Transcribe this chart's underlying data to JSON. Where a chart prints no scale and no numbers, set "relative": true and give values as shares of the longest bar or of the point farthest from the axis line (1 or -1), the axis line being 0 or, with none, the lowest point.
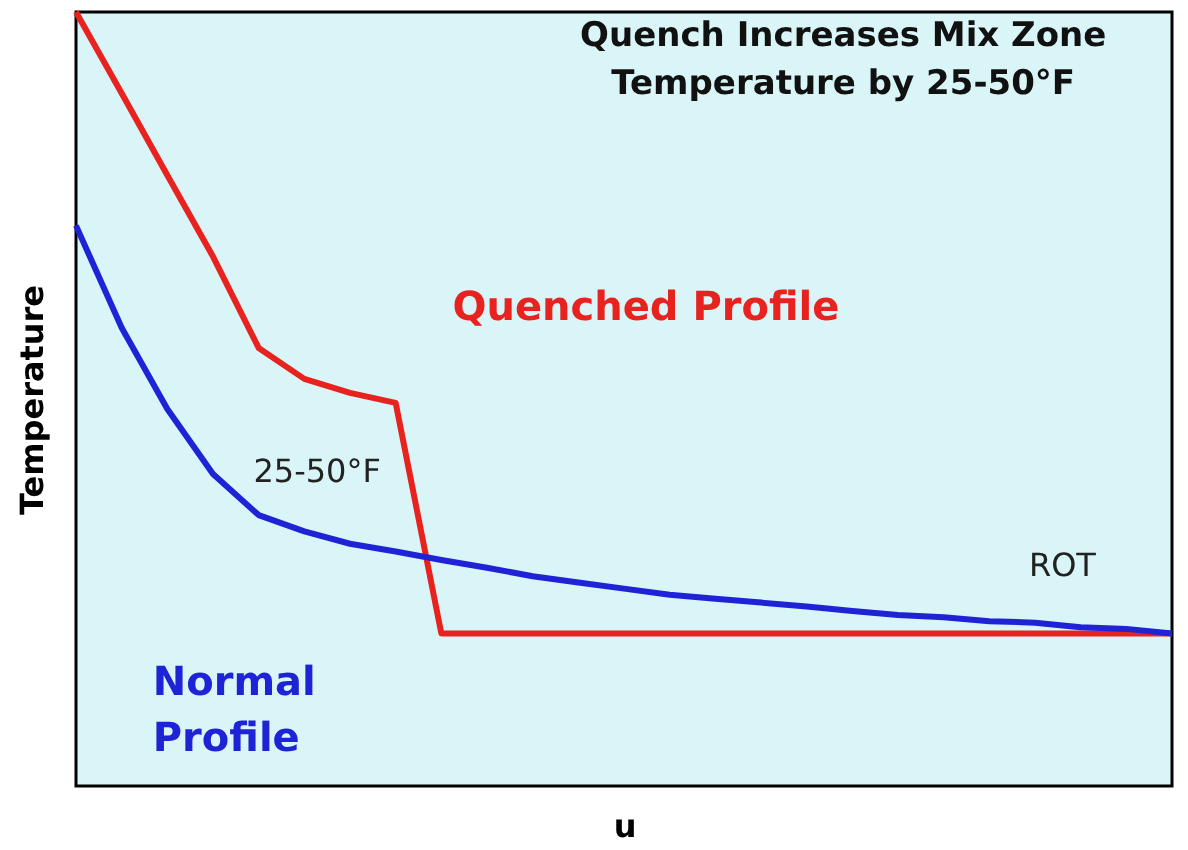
{
  "chart_data": {
    "type": "line",
    "relative": true,
    "title": "Quench Increases Mix Zone\nTemperature by 25-50°F",
    "xlabel": "u",
    "ylabel": "Temperature",
    "categories": [
      null,
      null,
      null,
      null,
      null,
      null,
      null,
      null,
      null,
      null,
      null,
      null,
      null,
      null,
      null,
      null,
      null,
      null,
      null,
      null,
      null,
      null,
      null,
      null,
      null
    ],
    "series": [
      {
        "name": "Quenched Profile",
        "color": "#e8231f",
        "values": [
          1.0,
          0.895,
          0.789,
          0.684,
          0.566,
          0.526,
          0.508,
          0.495,
          0.197,
          0.197,
          0.197,
          0.197,
          0.197,
          0.197,
          0.197,
          0.197,
          0.197,
          0.197,
          0.197,
          0.197,
          0.197,
          0.197,
          0.197,
          0.197,
          0.197
        ]
      },
      {
        "name": "Normal Profile",
        "color": "#1f23d6",
        "values": [
          0.724,
          0.592,
          0.487,
          0.403,
          0.35,
          0.329,
          0.313,
          0.303,
          0.292,
          0.282,
          0.271,
          0.263,
          0.255,
          0.247,
          0.242,
          0.237,
          0.232,
          0.226,
          0.221,
          0.218,
          0.213,
          0.211,
          0.205,
          0.203,
          0.197
        ]
      }
    ],
    "annotations": [
      "25-50°F",
      "ROT"
    ],
    "legend": false,
    "grid": false,
    "marker": "none",
    "line_style": "solid"
  }
}
